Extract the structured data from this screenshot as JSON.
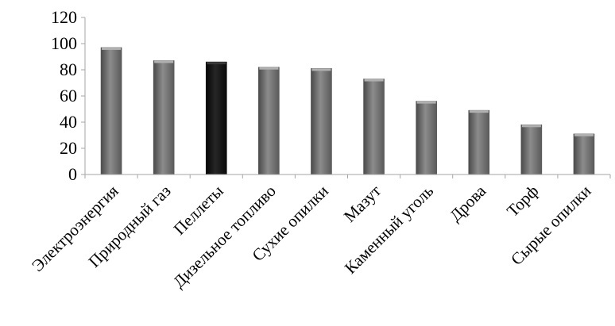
{
  "chart_data": {
    "type": "bar",
    "categories": [
      "Электроэнергия",
      "Природный газ",
      "Пеллеты",
      "Дизельное топливо",
      "Сухие опилки",
      "Мазут",
      "Каменный уголь",
      "Дрова",
      "Торф",
      "Сырые опилки"
    ],
    "values": [
      97,
      87,
      86,
      82,
      81,
      73,
      56,
      49,
      38,
      31
    ],
    "highlight_index": 2,
    "ylim": [
      0,
      120
    ],
    "yticks": [
      0,
      20,
      40,
      60,
      80,
      100,
      120
    ],
    "grid": false,
    "legend": "none",
    "colors": {
      "bar": "#7a7a7a",
      "bar_highlight": "#161616",
      "axis": "#a6a6a6"
    }
  }
}
